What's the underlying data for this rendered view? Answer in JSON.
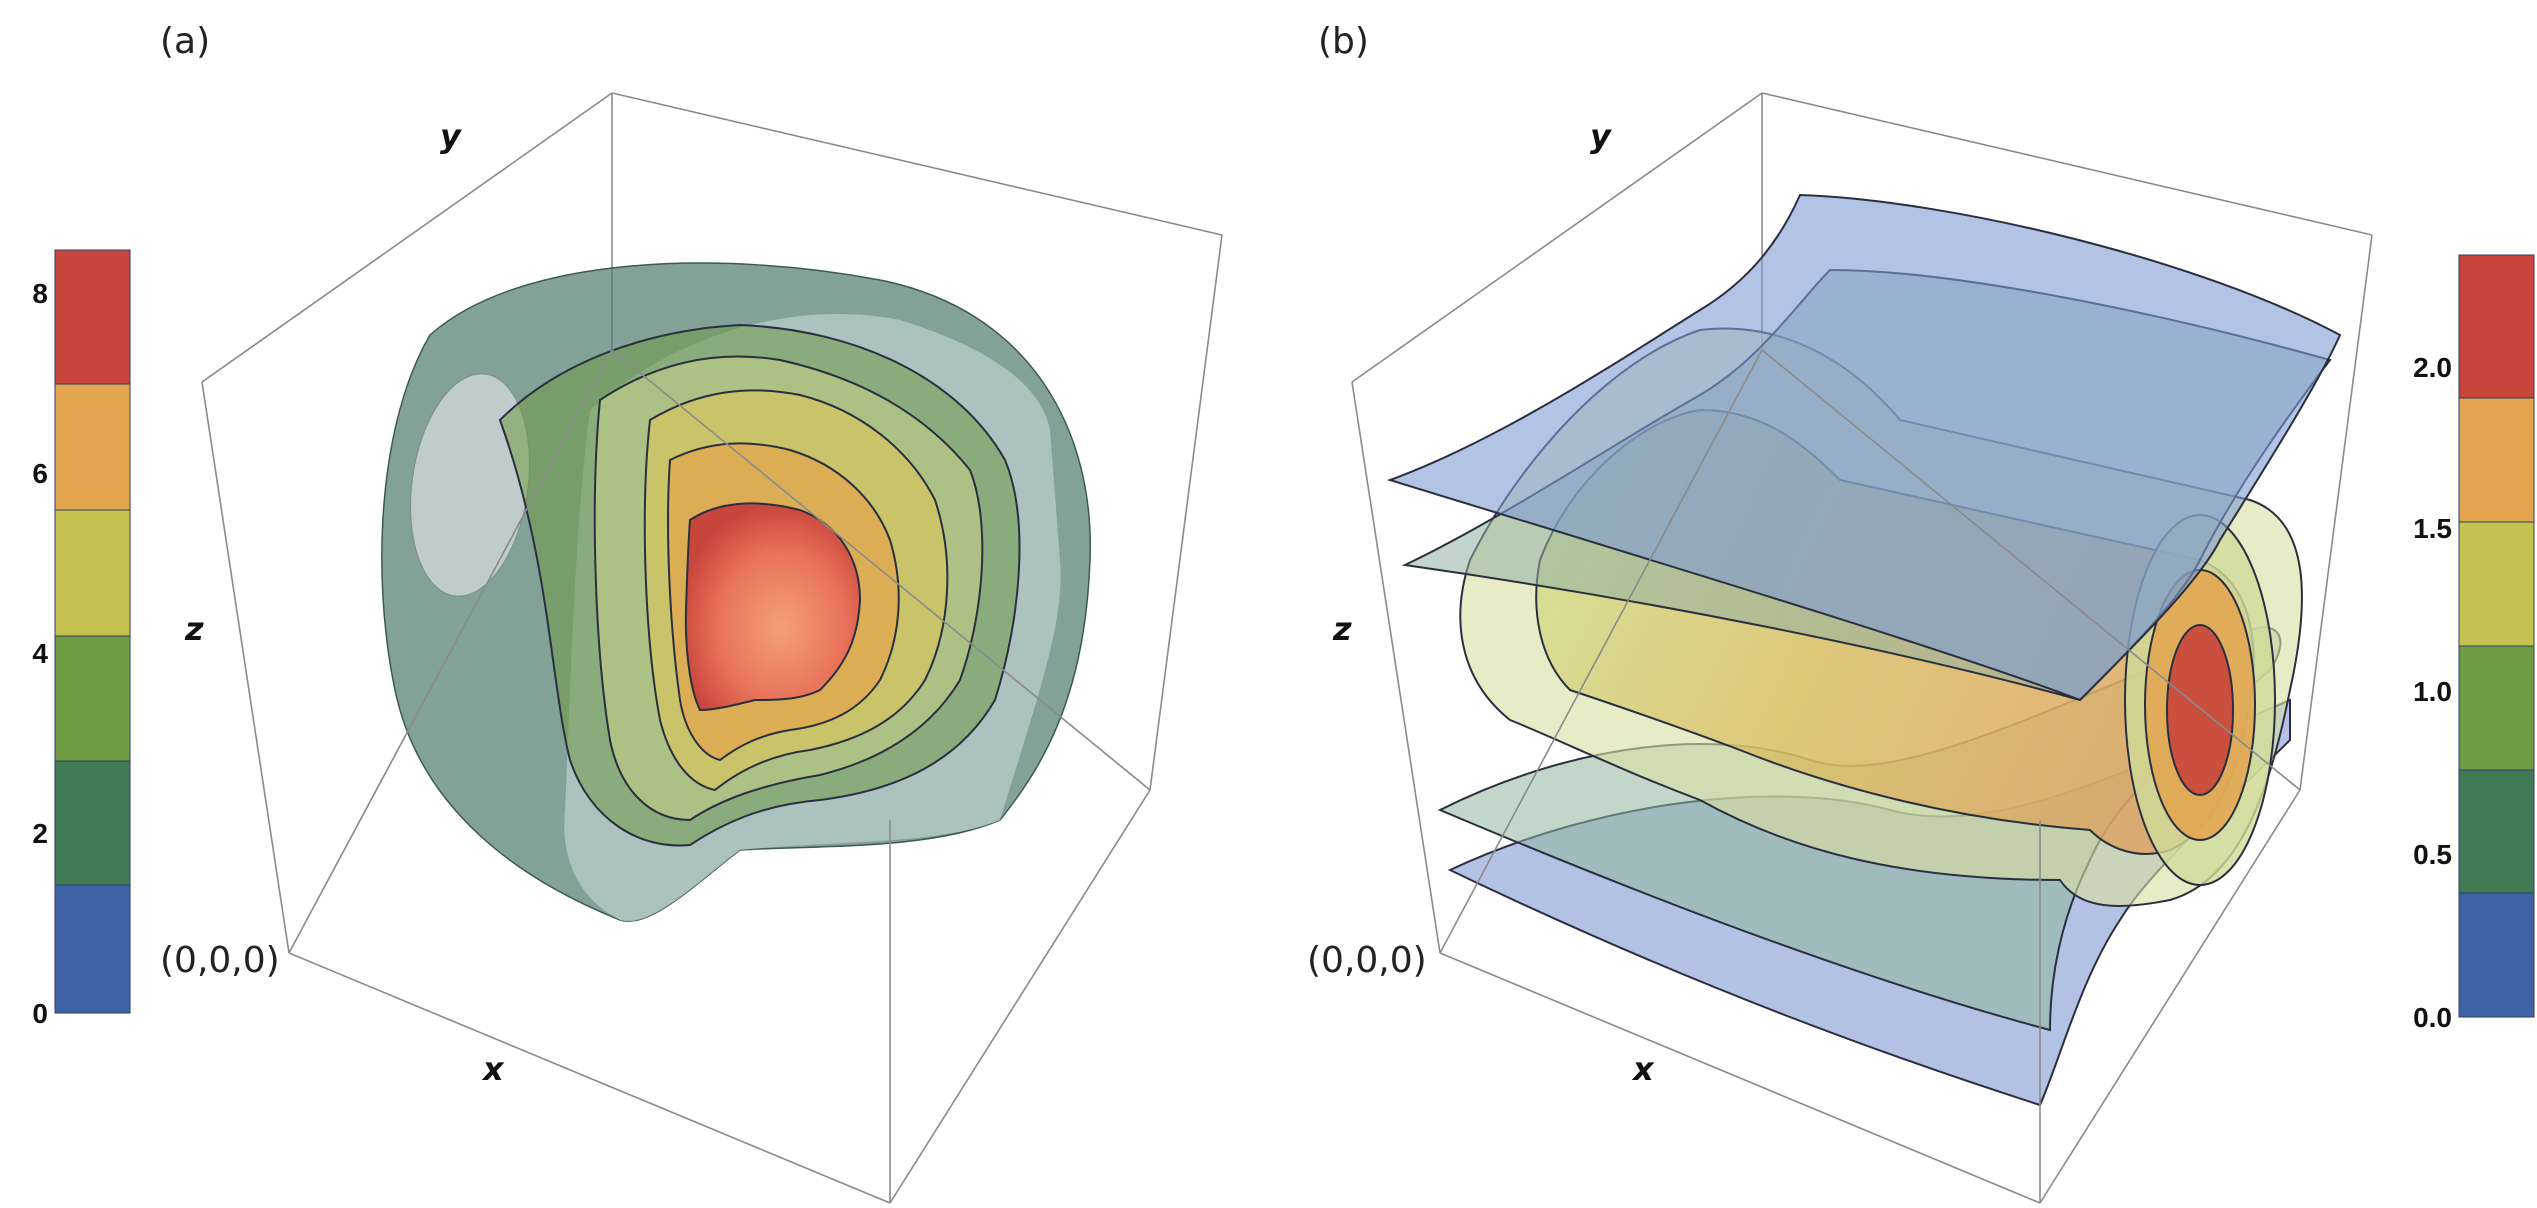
{
  "panels": [
    {
      "label": "(a)",
      "axes": {
        "x": "x",
        "y": "y",
        "z": "z"
      },
      "origin_label": "(0,0,0)",
      "legend": {
        "ticks": [
          "0",
          "2",
          "4",
          "6",
          "8"
        ],
        "colors": [
          "#3f61a6",
          "#3f7a55",
          "#6f9b45",
          "#c6c24f",
          "#e3a54f",
          "#c8453c"
        ]
      }
    },
    {
      "label": "(b)",
      "axes": {
        "x": "x",
        "y": "y",
        "z": "z"
      },
      "origin_label": "(0,0,0)",
      "legend": {
        "ticks": [
          "0.0",
          "0.5",
          "1.0",
          "1.5",
          "2.0"
        ],
        "colors": [
          "#3f61a6",
          "#3f7a55",
          "#6f9b45",
          "#c6c24f",
          "#e3a54f",
          "#c8453c"
        ]
      }
    }
  ]
}
